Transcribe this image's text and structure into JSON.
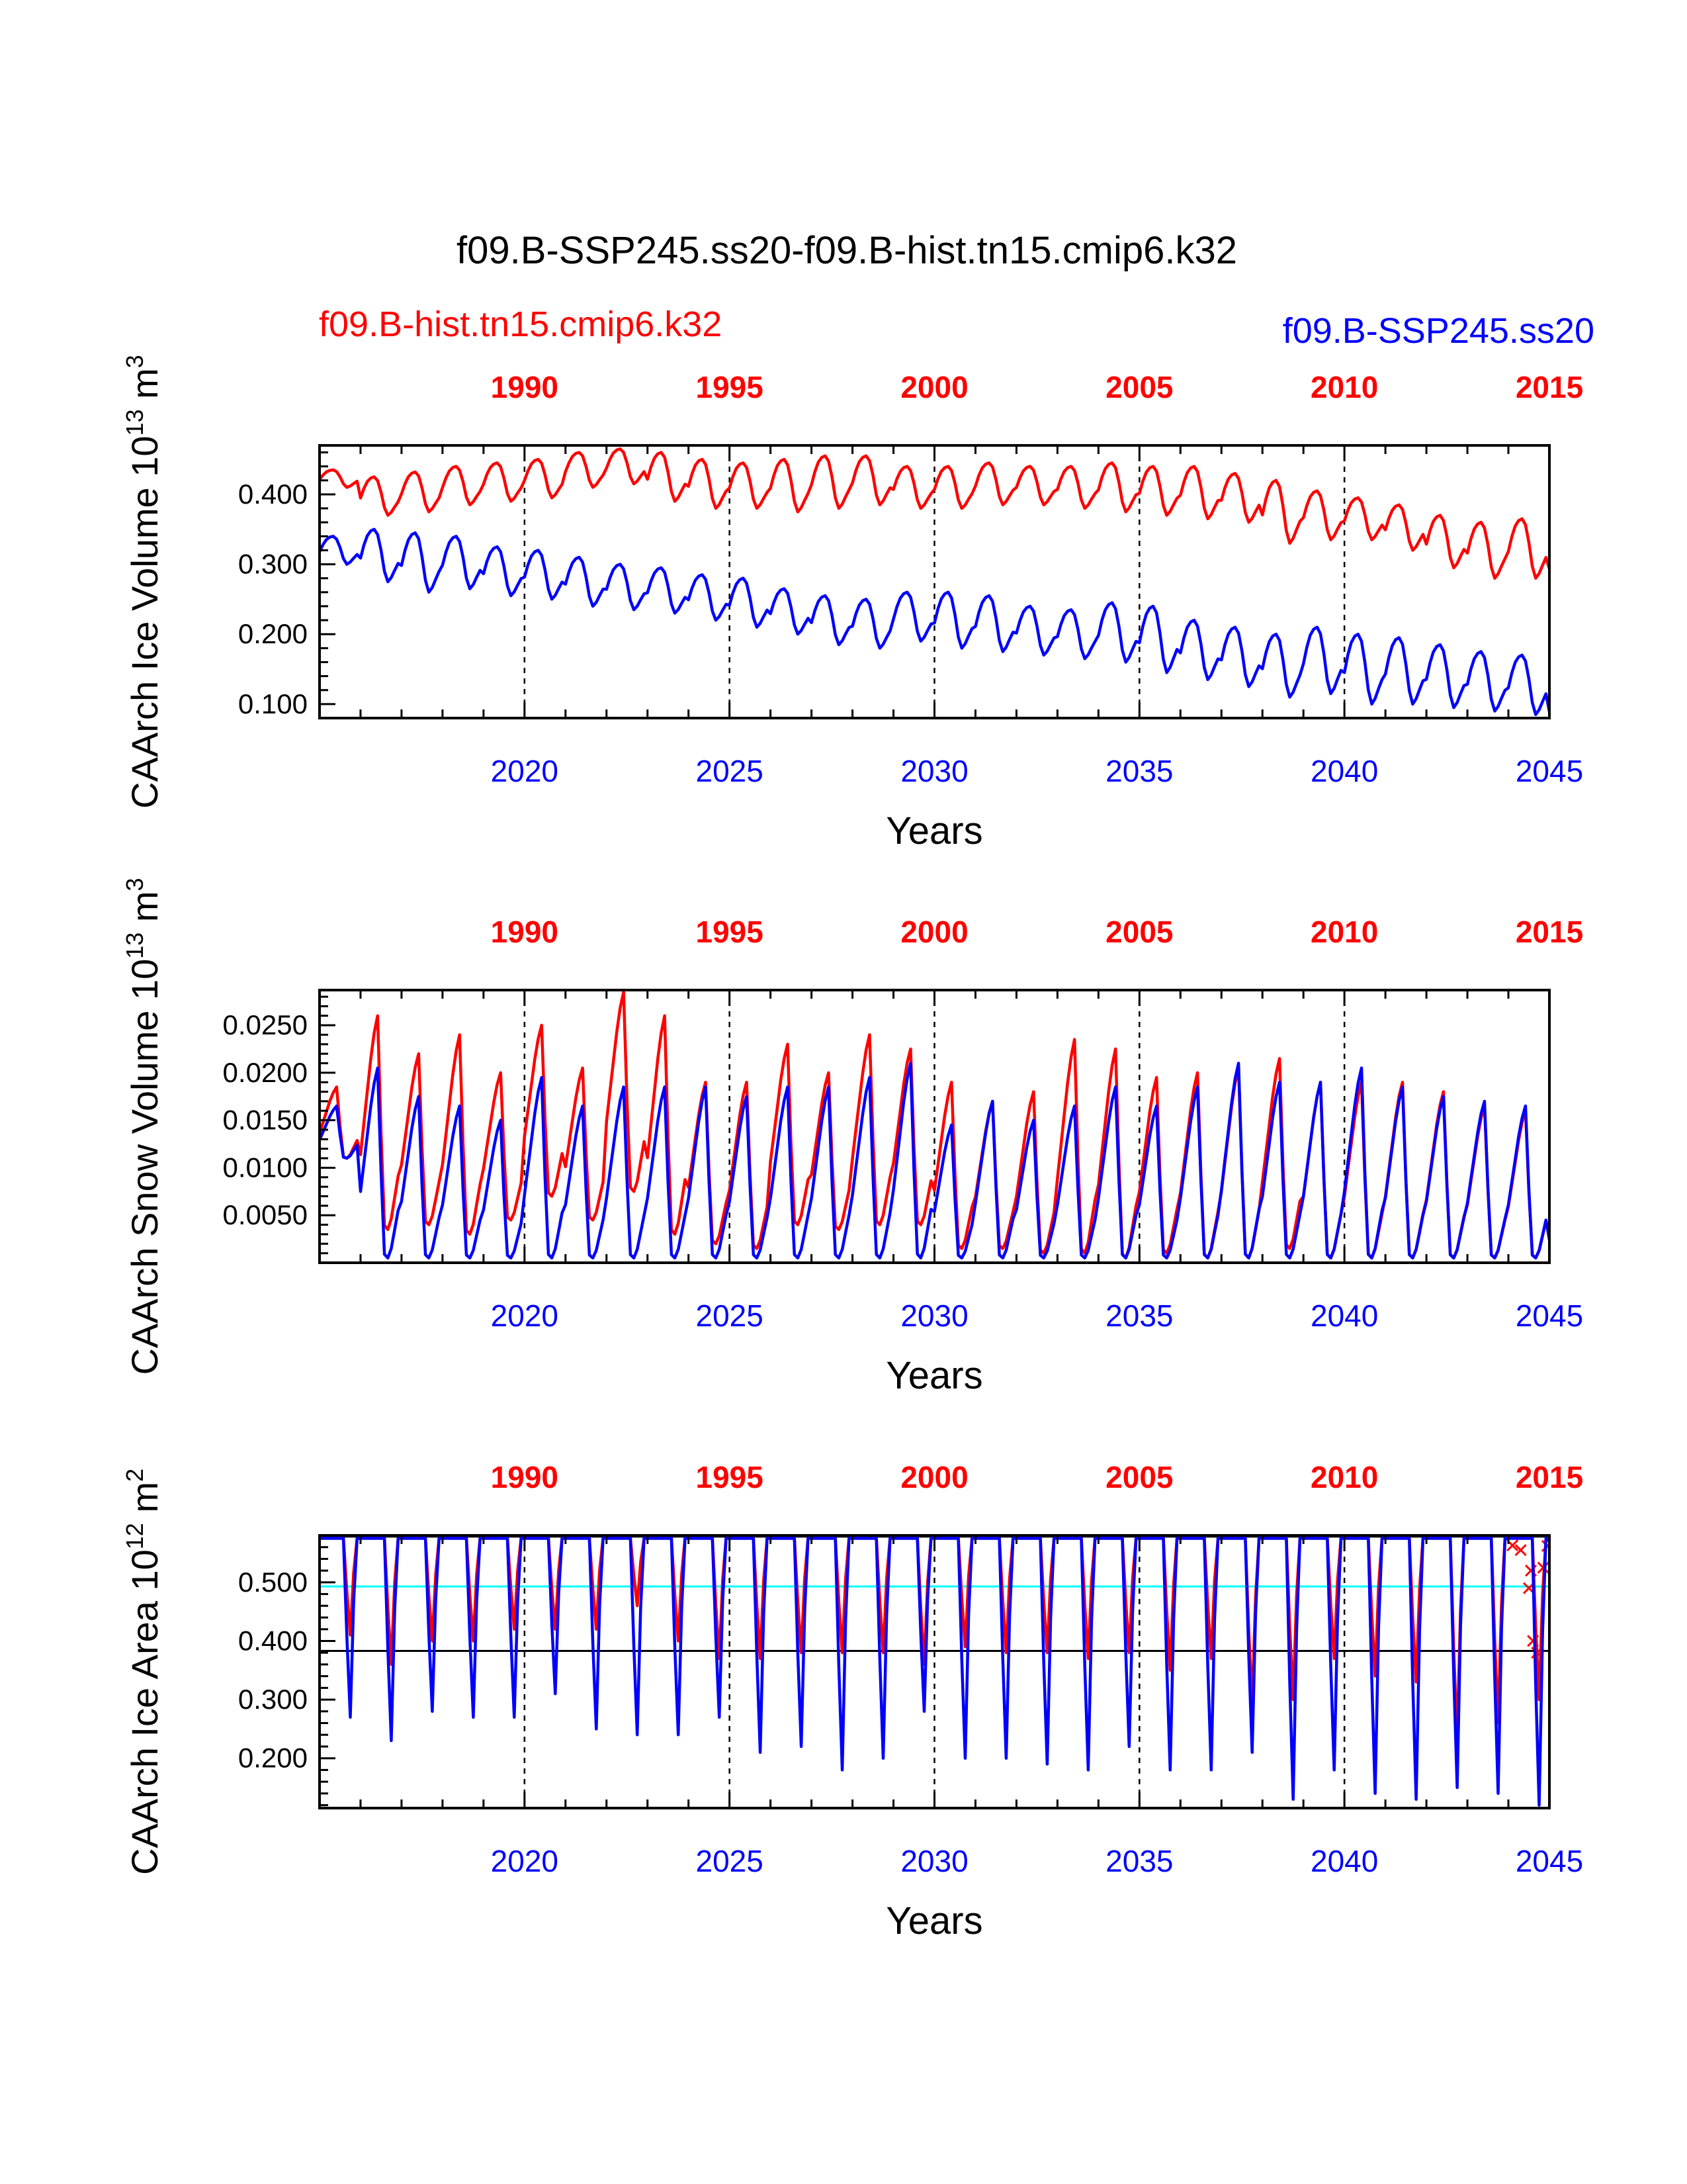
{
  "figure": {
    "title": "f09.B-SSP245.ss20-f09.B-hist.tn15.cmip6.k32",
    "legend_red": "f09.B-hist.tn15.cmip6.k32",
    "legend_blue": "f09.B-SSP245.ss20",
    "colors": {
      "red": "#ff0000",
      "blue": "#0000ff",
      "cyan": "#00ffff",
      "black": "#000000"
    }
  },
  "chart_data": [
    {
      "type": "line",
      "ylabel_main": "CAArch Ice Volume 10",
      "ylabel_exp": "13",
      "ylabel_unit": " m",
      "ylabel_unit_exp": "3",
      "xlabel": "Years",
      "xlim": [
        2015,
        2045
      ],
      "ylim": [
        0.08,
        0.47
      ],
      "yticks": [
        "0.100",
        "0.200",
        "0.300",
        "0.400"
      ],
      "ytick_values": [
        0.1,
        0.2,
        0.3,
        0.4
      ],
      "bottom_ticks": [
        "2020",
        "2025",
        "2030",
        "2035",
        "2040",
        "2045"
      ],
      "top_ticks": [
        "1990",
        "1995",
        "2000",
        "2005",
        "2010",
        "2015"
      ],
      "series": [
        {
          "name": "f09.B-hist.tn15.cmip6.k32",
          "color": "#ff0000",
          "annual_max": [
            0.435,
            0.425,
            0.432,
            0.44,
            0.445,
            0.45,
            0.46,
            0.465,
            0.46,
            0.45,
            0.445,
            0.45,
            0.455,
            0.455,
            0.44,
            0.44,
            0.445,
            0.44,
            0.44,
            0.445,
            0.44,
            0.44,
            0.43,
            0.42,
            0.405,
            0.395,
            0.385,
            0.37,
            0.36,
            0.365,
            0.31
          ],
          "annual_min": [
            0.41,
            0.37,
            0.375,
            0.385,
            0.39,
            0.395,
            0.41,
            0.415,
            0.39,
            0.38,
            0.38,
            0.375,
            0.38,
            0.385,
            0.38,
            0.38,
            0.385,
            0.385,
            0.38,
            0.375,
            0.37,
            0.365,
            0.36,
            0.33,
            0.335,
            0.335,
            0.32,
            0.295,
            0.28,
            0.28,
            0.28
          ]
        },
        {
          "name": "f09.B-SSP245.ss20",
          "color": "#0000ff",
          "annual_max": [
            0.34,
            0.35,
            0.345,
            0.34,
            0.325,
            0.32,
            0.31,
            0.3,
            0.295,
            0.285,
            0.28,
            0.265,
            0.255,
            0.25,
            0.26,
            0.26,
            0.255,
            0.24,
            0.235,
            0.245,
            0.24,
            0.22,
            0.21,
            0.2,
            0.21,
            0.2,
            0.195,
            0.185,
            0.175,
            0.17,
            0.1
          ],
          "annual_min": [
            0.3,
            0.275,
            0.26,
            0.265,
            0.255,
            0.25,
            0.24,
            0.235,
            0.23,
            0.22,
            0.21,
            0.2,
            0.185,
            0.18,
            0.19,
            0.18,
            0.175,
            0.17,
            0.165,
            0.16,
            0.145,
            0.135,
            0.125,
            0.11,
            0.115,
            0.1,
            0.1,
            0.095,
            0.09,
            0.085,
            0.08
          ]
        }
      ]
    },
    {
      "type": "line",
      "ylabel_main": "CAArch Snow Volume 10",
      "ylabel_exp": "13",
      "ylabel_unit": " m",
      "ylabel_unit_exp": "3",
      "xlabel": "Years",
      "xlim": [
        2015,
        2045
      ],
      "ylim": [
        0,
        0.0287
      ],
      "yticks": [
        "0.0050",
        "0.0100",
        "0.0150",
        "0.0200",
        "0.0250"
      ],
      "ytick_values": [
        0.005,
        0.01,
        0.015,
        0.02,
        0.025
      ],
      "bottom_ticks": [
        "2020",
        "2025",
        "2030",
        "2035",
        "2040",
        "2045"
      ],
      "top_ticks": [
        "1990",
        "1995",
        "2000",
        "2005",
        "2010",
        "2015"
      ],
      "series": [
        {
          "name": "f09.B-hist.tn15.cmip6.k32",
          "color": "#ff0000",
          "annual_max": [
            0.0185,
            0.026,
            0.022,
            0.024,
            0.02,
            0.025,
            0.0205,
            0.0285,
            0.026,
            0.019,
            0.019,
            0.023,
            0.02,
            0.024,
            0.0225,
            0.019,
            0.017,
            0.018,
            0.0235,
            0.0225,
            0.0195,
            0.02,
            0.0205,
            0.0215,
            0.019,
            0.019,
            0.019,
            0.018,
            0.0165,
            0.016,
            0.009
          ],
          "annual_min": [
            0.011,
            0.0035,
            0.004,
            0.003,
            0.0045,
            0.007,
            0.0045,
            0.0075,
            0.003,
            0.002,
            0.0015,
            0.004,
            0.0035,
            0.004,
            0.004,
            0.0015,
            0.0015,
            0.001,
            0.001,
            0.0005,
            0.001,
            0.0005,
            0.0005,
            0.0015,
            0.0005,
            0.0005,
            0.0005,
            0.0005,
            0.0005,
            0.0005,
            0.0005
          ]
        },
        {
          "name": "f09.B-SSP245.ss20",
          "color": "#0000ff",
          "annual_max": [
            0.0165,
            0.0205,
            0.0175,
            0.0165,
            0.015,
            0.0195,
            0.0165,
            0.0185,
            0.0185,
            0.0185,
            0.0175,
            0.0185,
            0.0185,
            0.0195,
            0.021,
            0.0145,
            0.017,
            0.015,
            0.0165,
            0.0185,
            0.0165,
            0.0185,
            0.021,
            0.019,
            0.019,
            0.0205,
            0.0185,
            0.0175,
            0.017,
            0.0165,
            0.006
          ],
          "annual_min": [
            0.011,
            0.0005,
            0.0005,
            0.0005,
            0.0005,
            0.0005,
            0.0005,
            0.0005,
            0.0005,
            0.0005,
            0.0005,
            0.0005,
            0.0005,
            0.0005,
            0.0005,
            0.0005,
            0.0005,
            0.0005,
            0.0005,
            0.0005,
            0.0005,
            0.0005,
            0.0005,
            0.0005,
            0.0005,
            0.0005,
            0.0005,
            0.0005,
            0.0005,
            0.0005,
            0.0005
          ]
        }
      ]
    },
    {
      "type": "line",
      "ylabel_main": "CAArch Ice Area 10",
      "ylabel_exp": "12",
      "ylabel_unit": " m",
      "ylabel_unit_exp": "2",
      "xlabel": "Years",
      "xlim": [
        2015,
        2045
      ],
      "ylim": [
        0.115,
        0.58
      ],
      "yticks": [
        "0.200",
        "0.300",
        "0.400",
        "0.500"
      ],
      "ytick_values": [
        0.2,
        0.3,
        0.4,
        0.5
      ],
      "bottom_ticks": [
        "2020",
        "2025",
        "2030",
        "2035",
        "2040",
        "2045"
      ],
      "top_ticks": [
        "1990",
        "1995",
        "2000",
        "2005",
        "2010",
        "2015"
      ],
      "ref_lines": [
        {
          "y": 0.578,
          "color": "#000000"
        },
        {
          "y": 0.493,
          "color": "#00ffff"
        },
        {
          "y": 0.383,
          "color": "#000000"
        }
      ],
      "series": [
        {
          "name": "f09.B-hist.tn15.cmip6.k32",
          "color": "#ff0000",
          "annual_max": [
            0.575,
            0.575,
            0.575,
            0.575,
            0.575,
            0.575,
            0.575,
            0.575,
            0.575,
            0.575,
            0.575,
            0.575,
            0.575,
            0.575,
            0.575,
            0.575,
            0.575,
            0.575,
            0.575,
            0.575,
            0.575,
            0.575,
            0.575,
            0.575,
            0.575,
            0.575,
            0.575,
            0.575,
            0.575,
            0.575,
            0.57
          ],
          "annual_min": [
            0.41,
            0.36,
            0.4,
            0.4,
            0.42,
            0.42,
            0.42,
            0.46,
            0.4,
            0.37,
            0.37,
            0.38,
            0.38,
            0.38,
            0.36,
            0.39,
            0.38,
            0.38,
            0.37,
            0.38,
            0.35,
            0.37,
            0.29,
            0.3,
            0.37,
            0.34,
            0.33,
            0.23,
            0.26,
            0.3,
            0.3
          ],
          "markers": [
            [
              2044.1,
              0.563
            ],
            [
              2044.3,
              0.555
            ],
            [
              2044.55,
              0.52
            ],
            [
              2044.5,
              0.49
            ],
            [
              2044.6,
              0.4
            ],
            [
              2044.7,
              0.38
            ],
            [
              2044.85,
              0.525
            ],
            [
              2044.95,
              0.562
            ]
          ]
        },
        {
          "name": "f09.B-SSP245.ss20",
          "color": "#0000ff",
          "annual_max": [
            0.575,
            0.575,
            0.575,
            0.575,
            0.575,
            0.575,
            0.575,
            0.575,
            0.575,
            0.575,
            0.575,
            0.575,
            0.575,
            0.575,
            0.575,
            0.575,
            0.575,
            0.575,
            0.575,
            0.575,
            0.575,
            0.575,
            0.575,
            0.575,
            0.575,
            0.575,
            0.575,
            0.575,
            0.575,
            0.575,
            0.57
          ],
          "annual_min": [
            0.27,
            0.23,
            0.28,
            0.27,
            0.27,
            0.31,
            0.25,
            0.24,
            0.24,
            0.27,
            0.21,
            0.22,
            0.18,
            0.2,
            0.28,
            0.2,
            0.2,
            0.19,
            0.18,
            0.22,
            0.18,
            0.18,
            0.21,
            0.13,
            0.18,
            0.14,
            0.13,
            0.15,
            0.14,
            0.12,
            0.15
          ]
        }
      ]
    }
  ]
}
